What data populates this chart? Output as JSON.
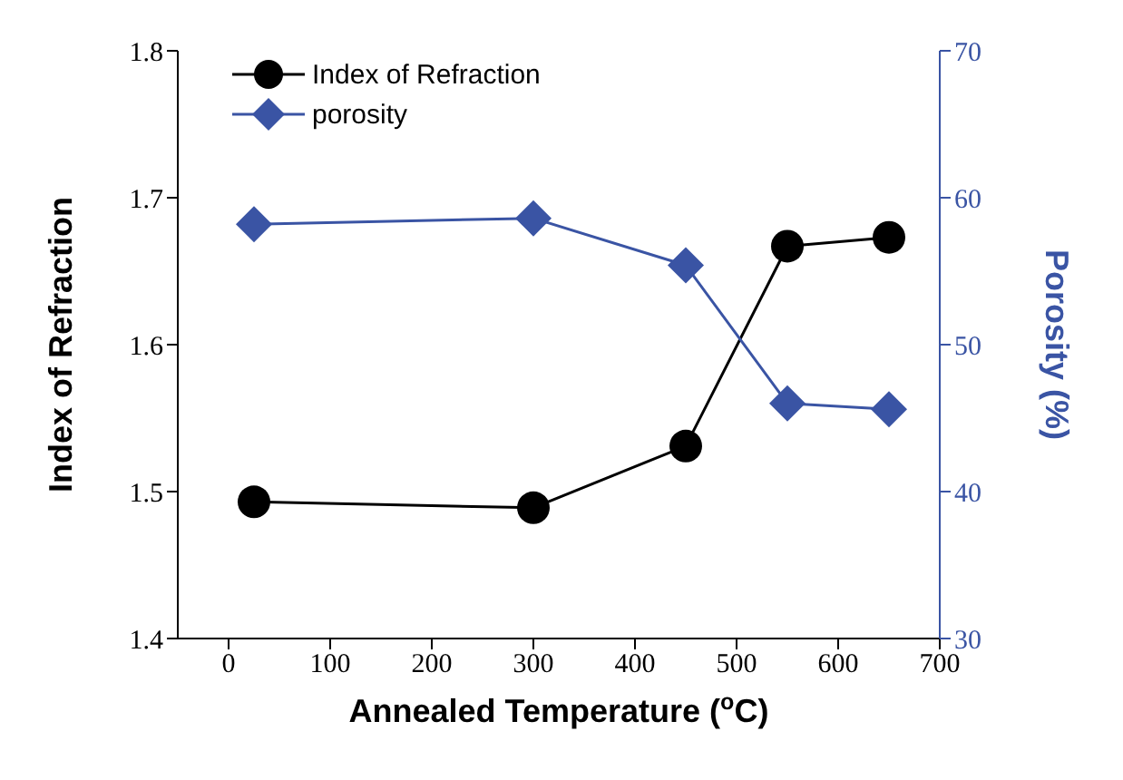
{
  "chart_data": {
    "type": "line",
    "xlabel": "Annealed Temperature ($^{o}$C)",
    "ylabel": "Index of Refraction",
    "y2label": "Porosity (%)",
    "x": [
      25,
      300,
      450,
      550,
      650
    ],
    "series": [
      {
        "name": "Index of Refraction",
        "color": "#000000",
        "marker": "circle",
        "values": [
          1.493,
          1.489,
          1.531,
          1.667,
          1.673
        ]
      },
      {
        "name": "porosity",
        "color": "#3a54a4",
        "marker": "diamond",
        "axis": "y2",
        "values": [
          58.2,
          58.6,
          55.4,
          46.0,
          45.6
        ]
      }
    ],
    "xlim": [
      -50,
      700
    ],
    "xticks": [
      0,
      100,
      200,
      300,
      400,
      500,
      600,
      700
    ],
    "ylim": [
      1.4,
      1.8
    ],
    "yticks": [
      1.4,
      1.5,
      1.6,
      1.7,
      1.8
    ],
    "y2lim": [
      30,
      70
    ],
    "y2ticks": [
      30,
      40,
      50,
      60,
      70
    ],
    "grid": false,
    "legend": "top left",
    "line_style": "solid"
  }
}
